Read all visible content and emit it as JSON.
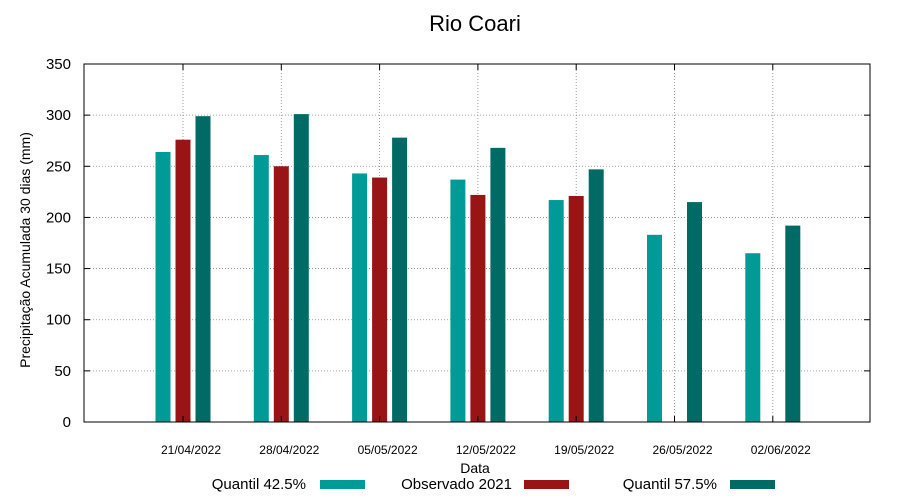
{
  "chart_data": {
    "type": "bar",
    "title": "Rio Coari",
    "xlabel": "Data",
    "ylabel": "Precipitação Acumulada 30 dias (mm)",
    "ylim": [
      0,
      350
    ],
    "yticks": [
      "0",
      "50",
      "100",
      "150",
      "200",
      "250",
      "300",
      "350"
    ],
    "categories": [
      "21/04/2022",
      "28/04/2022",
      "05/05/2022",
      "12/05/2022",
      "19/05/2022",
      "26/05/2022",
      "02/06/2022"
    ],
    "grid": true,
    "legend_position": "bottom",
    "series": [
      {
        "name": "Quantil 42.5%",
        "color": "#009b96",
        "values": [
          264,
          261,
          243,
          237,
          217,
          183,
          165
        ]
      },
      {
        "name": "Observado 2021",
        "color": "#991414",
        "values": [
          276,
          250,
          239,
          222,
          221,
          null,
          null
        ]
      },
      {
        "name": "Quantil 57.5%",
        "color": "#006b65",
        "values": [
          299,
          301,
          278,
          268,
          247,
          215,
          192
        ]
      }
    ]
  }
}
